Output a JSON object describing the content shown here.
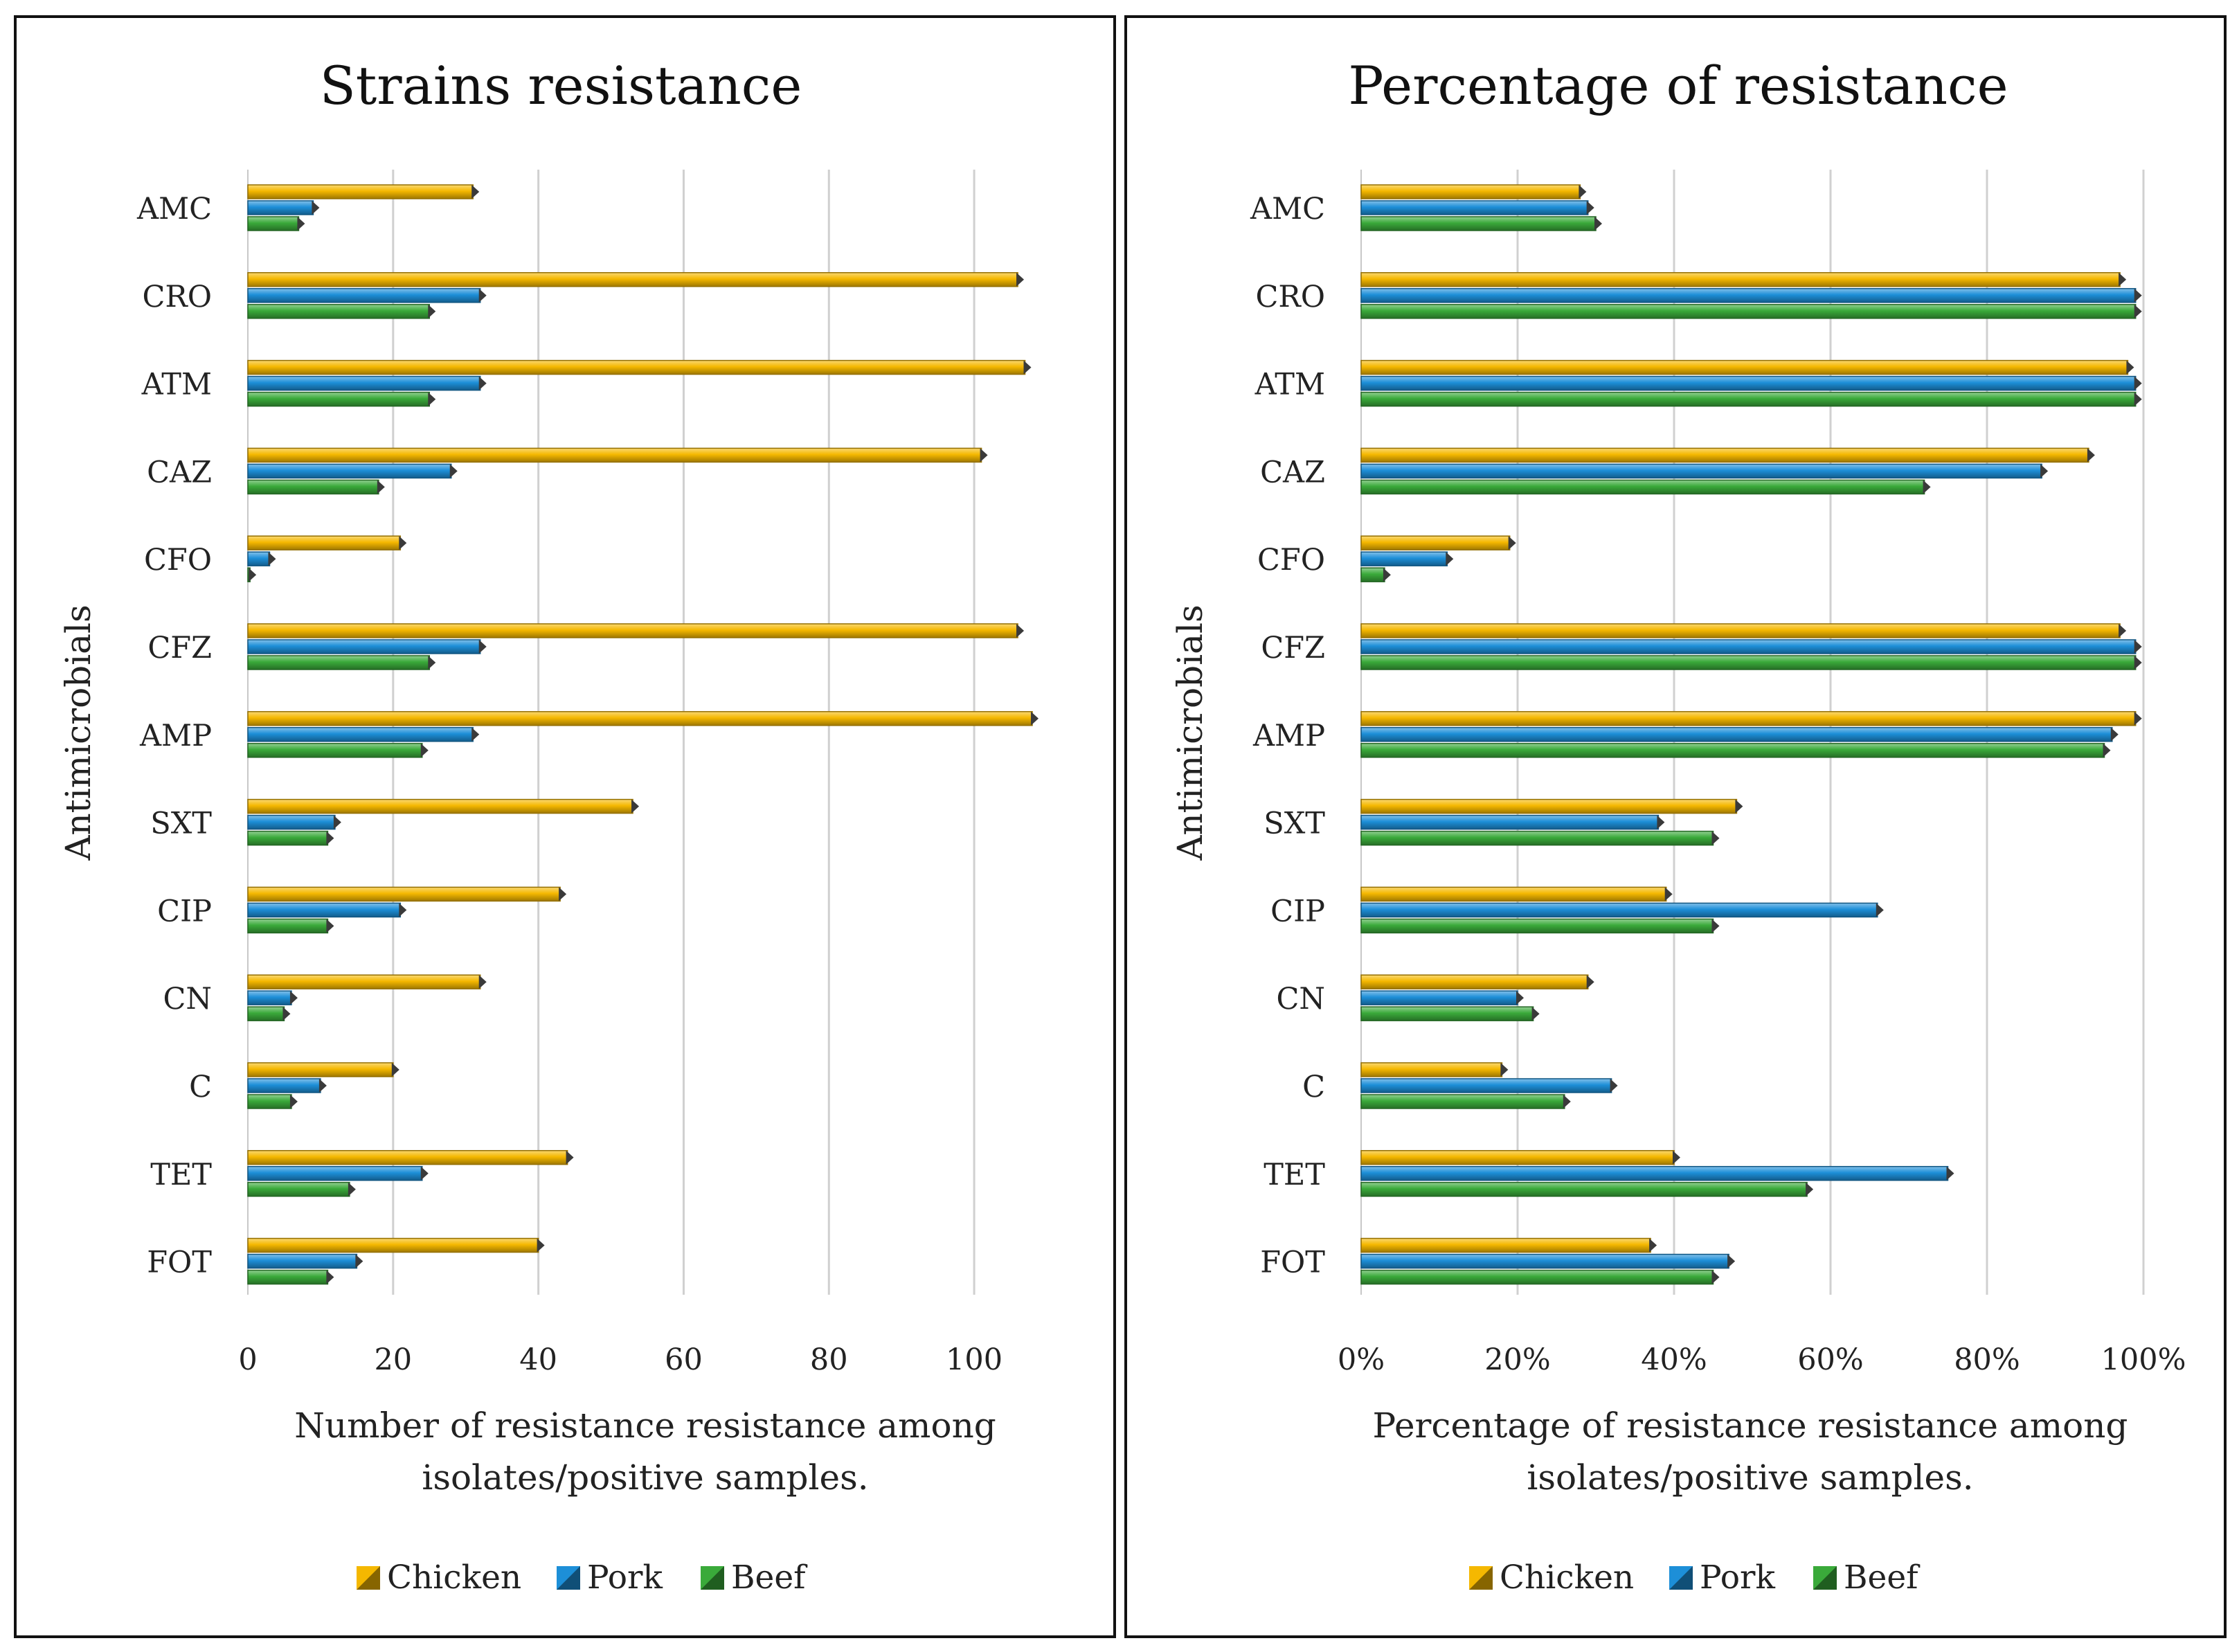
{
  "chart_data": [
    {
      "type": "bar",
      "orientation": "horizontal",
      "title": "Strains resistance",
      "ylabel": "Antimicrobials",
      "xlabel": [
        "Number of resistance resistance among",
        "isolates/positive samples."
      ],
      "categories": [
        "AMC",
        "CRO",
        "ATM",
        "CAZ",
        "CFO",
        "CFZ",
        "AMP",
        "SXT",
        "CIP",
        "CN",
        "C",
        "TET",
        "FOT"
      ],
      "xlim": [
        0,
        110
      ],
      "xticks": [
        0,
        20,
        40,
        60,
        80,
        100
      ],
      "xtick_labels": [
        "0",
        "20",
        "40",
        "60",
        "80",
        "100"
      ],
      "grid": true,
      "series": [
        {
          "name": "Chicken",
          "color": "#f5b800",
          "values": [
            31,
            106,
            107,
            101,
            21,
            106,
            108,
            53,
            43,
            32,
            20,
            44,
            40
          ]
        },
        {
          "name": "Pork",
          "color": "#1d8fd8",
          "values": [
            9,
            32,
            32,
            28,
            3,
            32,
            31,
            12,
            21,
            6,
            10,
            24,
            15
          ]
        },
        {
          "name": "Beef",
          "color": "#3aaa3a",
          "values": [
            7,
            25,
            25,
            18,
            0.3,
            25,
            24,
            11,
            11,
            5,
            6,
            14,
            11
          ]
        }
      ],
      "legend": [
        "Chicken",
        "Pork",
        "Beef"
      ],
      "legend_position": "bottom"
    },
    {
      "type": "bar",
      "orientation": "horizontal",
      "title": "Percentage of resistance",
      "ylabel": "Antimicrobials",
      "xlabel": [
        "Percentage of resistance resistance among",
        "isolates/positive samples."
      ],
      "categories": [
        "AMC",
        "CRO",
        "ATM",
        "CAZ",
        "CFO",
        "CFZ",
        "AMP",
        "SXT",
        "CIP",
        "CN",
        "C",
        "TET",
        "FOT"
      ],
      "xlim": [
        0,
        100
      ],
      "xticks": [
        0,
        20,
        40,
        60,
        80,
        100
      ],
      "xtick_labels": [
        "0%",
        "20%",
        "40%",
        "60%",
        "80%",
        "100%"
      ],
      "grid": true,
      "series": [
        {
          "name": "Chicken",
          "color": "#f5b800",
          "values": [
            28,
            97,
            98,
            93,
            19,
            97,
            99,
            48,
            39,
            29,
            18,
            40,
            37
          ]
        },
        {
          "name": "Pork",
          "color": "#1d8fd8",
          "values": [
            29,
            99,
            99,
            87,
            11,
            99,
            96,
            38,
            66,
            20,
            32,
            75,
            47
          ]
        },
        {
          "name": "Beef",
          "color": "#3aaa3a",
          "values": [
            30,
            99,
            99,
            72,
            3,
            99,
            95,
            45,
            45,
            22,
            26,
            57,
            45
          ]
        }
      ],
      "legend": [
        "Chicken",
        "Pork",
        "Beef"
      ],
      "legend_position": "bottom"
    }
  ]
}
